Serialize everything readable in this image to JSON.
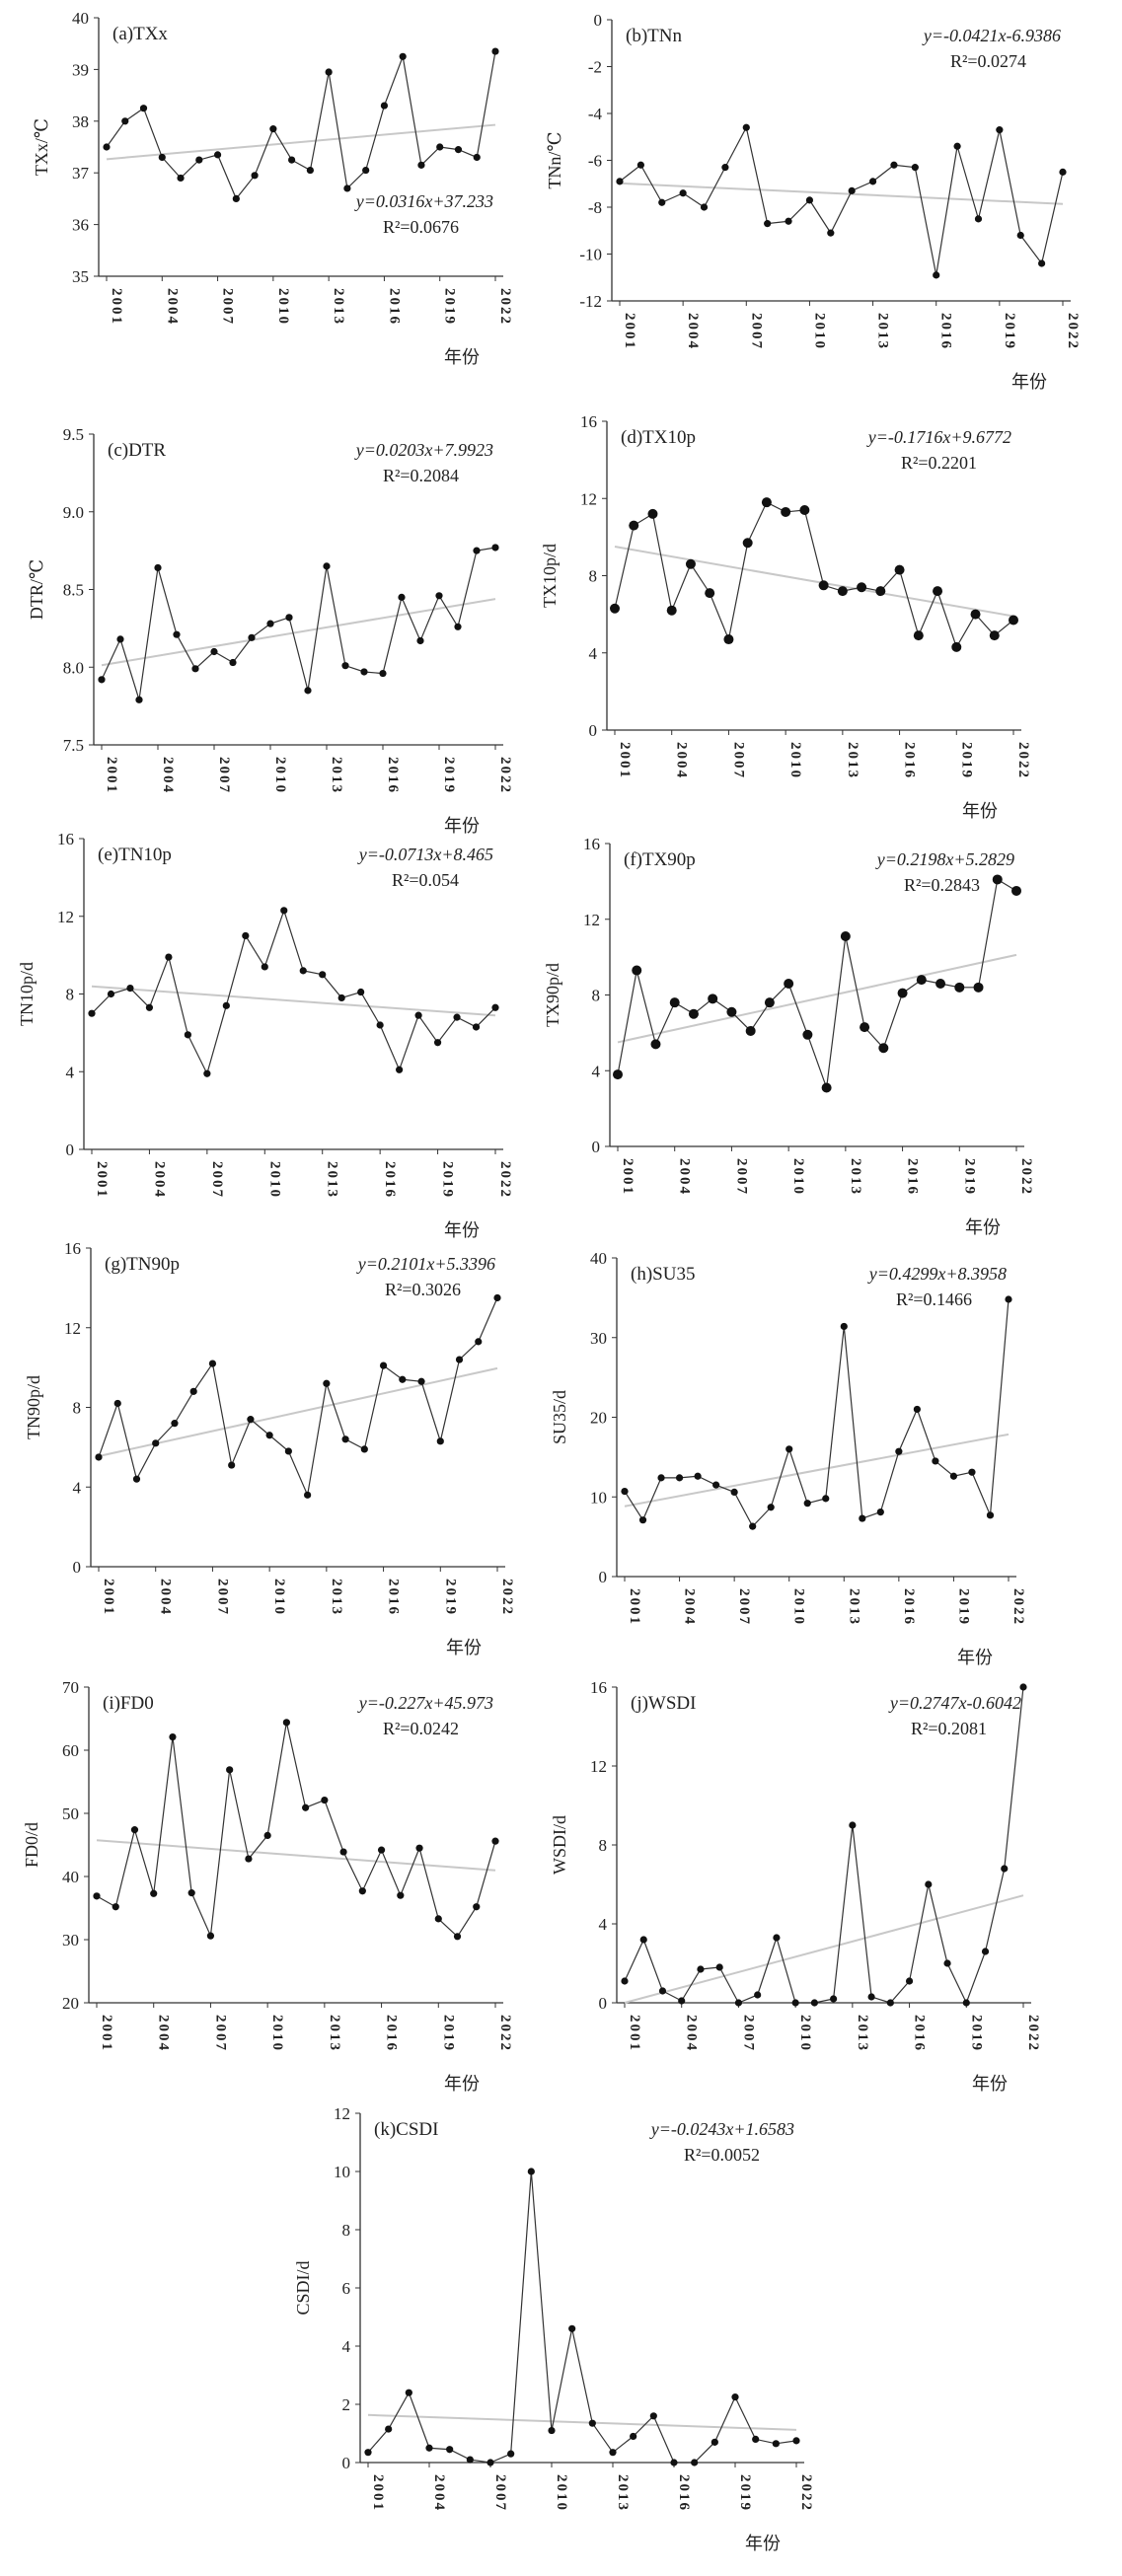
{
  "chart_data": [
    {
      "type": "line",
      "title": "(a)TXx",
      "ylabel": "TXx/℃",
      "xlabel": "年份",
      "x": [
        2001,
        2002,
        2003,
        2004,
        2005,
        2006,
        2007,
        2008,
        2009,
        2010,
        2011,
        2012,
        2013,
        2014,
        2015,
        2016,
        2017,
        2018,
        2019,
        2020,
        2021,
        2022
      ],
      "values": [
        37.5,
        38.0,
        38.25,
        37.3,
        36.9,
        37.25,
        37.35,
        36.5,
        36.95,
        37.85,
        37.25,
        37.05,
        38.95,
        36.7,
        37.05,
        38.3,
        39.25,
        37.15,
        37.5,
        37.45,
        37.3,
        39.35
      ],
      "ylim": [
        35,
        40
      ],
      "yticks": [
        "35",
        "36",
        "37",
        "38",
        "39",
        "40"
      ],
      "xticks": [
        "2001",
        "2004",
        "2007",
        "2010",
        "2013",
        "2016",
        "2019",
        "2022"
      ],
      "equation": "y=0.0316x+37.233",
      "r2": "R²=0.0676",
      "trend": {
        "slope": 0.0316,
        "intercept": 37.233
      },
      "equation_placement": "bottom-right"
    },
    {
      "type": "line",
      "title": "(b)TNn",
      "ylabel": "TNn/℃",
      "xlabel": "年份",
      "x": [
        2001,
        2002,
        2003,
        2004,
        2005,
        2006,
        2007,
        2008,
        2009,
        2010,
        2011,
        2012,
        2013,
        2014,
        2015,
        2016,
        2017,
        2018,
        2019,
        2020,
        2021,
        2022
      ],
      "values": [
        -6.9,
        -6.2,
        -7.8,
        -7.4,
        -8.0,
        -6.3,
        -4.6,
        -8.7,
        -8.6,
        -7.7,
        -9.1,
        -7.3,
        -6.9,
        -6.2,
        -6.3,
        -10.9,
        -5.4,
        -8.5,
        -4.7,
        -9.2,
        -10.4,
        -6.5
      ],
      "ylim": [
        -12,
        0
      ],
      "yticks": [
        "-12",
        "-10",
        "-8",
        "-6",
        "-4",
        "-2",
        "0"
      ],
      "xticks": [
        "2001",
        "2004",
        "2007",
        "2010",
        "2013",
        "2016",
        "2019",
        "2022"
      ],
      "equation": "y=-0.0421x-6.9386",
      "r2": "R²=0.0274",
      "trend": {
        "slope": -0.0421,
        "intercept": -6.9386
      },
      "equation_placement": "top-right"
    },
    {
      "type": "line",
      "title": "(c)DTR",
      "ylabel": "DTR/℃",
      "xlabel": "年份",
      "x": [
        2001,
        2002,
        2003,
        2004,
        2005,
        2006,
        2007,
        2008,
        2009,
        2010,
        2011,
        2012,
        2013,
        2014,
        2015,
        2016,
        2017,
        2018,
        2019,
        2020,
        2021,
        2022
      ],
      "values": [
        7.92,
        8.18,
        7.79,
        8.64,
        8.21,
        7.99,
        8.1,
        8.03,
        8.19,
        8.28,
        8.32,
        7.85,
        8.65,
        8.01,
        7.97,
        7.96,
        8.45,
        8.17,
        8.46,
        8.26,
        8.75,
        8.77
      ],
      "ylim": [
        7.5,
        9.5
      ],
      "yticks": [
        "7.5",
        "8.0",
        "8.5",
        "9.0",
        "9.5"
      ],
      "xticks": [
        "2001",
        "2004",
        "2007",
        "2010",
        "2013",
        "2016",
        "2019",
        "2022"
      ],
      "equation": "y=0.0203x+7.9923",
      "r2": "R²=0.2084",
      "trend": {
        "slope": 0.0203,
        "intercept": 7.9923
      },
      "equation_placement": "top-right"
    },
    {
      "type": "line",
      "title": "(d)TX10p",
      "ylabel": "TX10p/d",
      "xlabel": "年份",
      "x": [
        2001,
        2002,
        2003,
        2004,
        2005,
        2006,
        2007,
        2008,
        2009,
        2010,
        2011,
        2012,
        2013,
        2014,
        2015,
        2016,
        2017,
        2018,
        2019,
        2020,
        2021,
        2022
      ],
      "values": [
        6.3,
        10.6,
        11.2,
        6.2,
        8.6,
        7.1,
        4.7,
        9.7,
        11.8,
        11.3,
        11.4,
        7.5,
        7.2,
        7.4,
        7.2,
        8.3,
        4.9,
        7.2,
        4.3,
        6.0,
        4.9,
        5.7
      ],
      "ylim": [
        0,
        16
      ],
      "yticks": [
        "0",
        "4",
        "8",
        "12",
        "16"
      ],
      "xticks": [
        "2001",
        "2004",
        "2007",
        "2010",
        "2013",
        "2016",
        "2019",
        "2022"
      ],
      "equation": "y=-0.1716x+9.6772",
      "r2": "R²=0.2201",
      "trend": {
        "slope": -0.1716,
        "intercept": 9.6772
      },
      "equation_placement": "top-right"
    },
    {
      "type": "line",
      "title": "(e)TN10p",
      "ylabel": "TN10p/d",
      "xlabel": "年份",
      "x": [
        2001,
        2002,
        2003,
        2004,
        2005,
        2006,
        2007,
        2008,
        2009,
        2010,
        2011,
        2012,
        2013,
        2014,
        2015,
        2016,
        2017,
        2018,
        2019,
        2020,
        2021,
        2022
      ],
      "values": [
        7.0,
        8.0,
        8.3,
        7.3,
        9.9,
        5.9,
        3.9,
        7.4,
        11.0,
        9.4,
        12.3,
        9.2,
        9.0,
        7.8,
        8.1,
        6.4,
        4.1,
        6.9,
        5.5,
        6.8,
        6.3,
        7.3
      ],
      "ylim": [
        0,
        16
      ],
      "yticks": [
        "0",
        "4",
        "8",
        "12",
        "16"
      ],
      "xticks": [
        "2001",
        "2004",
        "2007",
        "2010",
        "2013",
        "2016",
        "2019",
        "2022"
      ],
      "equation": "y=-0.0713x+8.465",
      "r2": "R²=0.054",
      "trend": {
        "slope": -0.0713,
        "intercept": 8.465
      },
      "equation_placement": "top-right"
    },
    {
      "type": "line",
      "title": "(f)TX90p",
      "ylabel": "TX90p/d",
      "xlabel": "年份",
      "x": [
        2001,
        2002,
        2003,
        2004,
        2005,
        2006,
        2007,
        2008,
        2009,
        2010,
        2011,
        2012,
        2013,
        2014,
        2015,
        2016,
        2017,
        2018,
        2019,
        2020,
        2021,
        2022
      ],
      "values": [
        3.8,
        9.3,
        5.4,
        7.6,
        7.0,
        7.8,
        7.1,
        6.1,
        7.6,
        8.6,
        5.9,
        3.1,
        11.1,
        6.3,
        5.2,
        8.1,
        8.8,
        8.6,
        8.4,
        8.4,
        14.1,
        13.5
      ],
      "ylim": [
        0,
        16
      ],
      "yticks": [
        "0",
        "4",
        "8",
        "12",
        "16"
      ],
      "xticks": [
        "2001",
        "2004",
        "2007",
        "2010",
        "2013",
        "2016",
        "2019",
        "2022"
      ],
      "equation": "y=0.2198x+5.2829",
      "r2": "R²=0.2843",
      "trend": {
        "slope": 0.2198,
        "intercept": 5.2829
      },
      "equation_placement": "top-right"
    },
    {
      "type": "line",
      "title": "(g)TN90p",
      "ylabel": "TN90p/d",
      "xlabel": "年份",
      "x": [
        2001,
        2002,
        2003,
        2004,
        2005,
        2006,
        2007,
        2008,
        2009,
        2010,
        2011,
        2012,
        2013,
        2014,
        2015,
        2016,
        2017,
        2018,
        2019,
        2020,
        2021,
        2022
      ],
      "values": [
        5.5,
        8.2,
        4.4,
        6.2,
        7.2,
        8.8,
        10.2,
        5.1,
        7.4,
        6.6,
        5.8,
        3.6,
        9.2,
        6.4,
        5.9,
        10.1,
        9.4,
        9.3,
        6.3,
        10.4,
        11.3,
        13.5
      ],
      "ylim": [
        0,
        16
      ],
      "yticks": [
        "0",
        "4",
        "8",
        "12",
        "16"
      ],
      "xticks": [
        "2001",
        "2004",
        "2007",
        "2010",
        "2013",
        "2016",
        "2019",
        "2022"
      ],
      "equation": "y=0.2101x+5.3396",
      "r2": "R²=0.3026",
      "trend": {
        "slope": 0.2101,
        "intercept": 5.3396
      },
      "equation_placement": "top-right"
    },
    {
      "type": "line",
      "title": "(h)SU35",
      "ylabel": "SU35/d",
      "xlabel": "年份",
      "x": [
        2001,
        2002,
        2003,
        2004,
        2005,
        2006,
        2007,
        2008,
        2009,
        2010,
        2011,
        2012,
        2013,
        2014,
        2015,
        2016,
        2017,
        2018,
        2019,
        2020,
        2021,
        2022
      ],
      "values": [
        10.7,
        7.1,
        12.4,
        12.4,
        12.6,
        11.5,
        10.6,
        6.3,
        8.7,
        16.0,
        9.2,
        9.8,
        31.4,
        7.3,
        8.1,
        15.7,
        21.0,
        14.5,
        12.6,
        13.1,
        7.7,
        34.8
      ],
      "ylim": [
        0,
        40
      ],
      "yticks": [
        "0",
        "10",
        "20",
        "30",
        "40"
      ],
      "xticks": [
        "2001",
        "2004",
        "2007",
        "2010",
        "2013",
        "2016",
        "2019",
        "2022"
      ],
      "equation": "y=0.4299x+8.3958",
      "r2": "R²=0.1466",
      "trend": {
        "slope": 0.4299,
        "intercept": 8.3958
      },
      "equation_placement": "top-right"
    },
    {
      "type": "line",
      "title": "(i)FD0",
      "ylabel": "FD0/d",
      "xlabel": "年份",
      "x": [
        2001,
        2002,
        2003,
        2004,
        2005,
        2006,
        2007,
        2008,
        2009,
        2010,
        2011,
        2012,
        2013,
        2014,
        2015,
        2016,
        2017,
        2018,
        2019,
        2020,
        2021,
        2022
      ],
      "values": [
        36.9,
        35.2,
        47.4,
        37.3,
        62.1,
        37.4,
        30.6,
        56.9,
        42.8,
        46.5,
        64.4,
        50.9,
        52.1,
        43.9,
        37.7,
        44.2,
        37.0,
        44.5,
        33.3,
        30.5,
        35.2,
        45.6
      ],
      "ylim": [
        20,
        70
      ],
      "yticks": [
        "20",
        "30",
        "40",
        "50",
        "60",
        "70"
      ],
      "xticks": [
        "2001",
        "2004",
        "2007",
        "2010",
        "2013",
        "2016",
        "2019",
        "2022"
      ],
      "equation": "y=-0.227x+45.973",
      "r2": "R²=0.0242",
      "trend": {
        "slope": -0.227,
        "intercept": 45.973
      },
      "equation_placement": "top-right"
    },
    {
      "type": "line",
      "title": "(j)WSDI",
      "ylabel": "WSDI/d",
      "xlabel": "年份",
      "x": [
        2001,
        2002,
        2003,
        2004,
        2005,
        2006,
        2007,
        2008,
        2009,
        2010,
        2011,
        2012,
        2013,
        2014,
        2015,
        2016,
        2017,
        2018,
        2019,
        2020,
        2021,
        2022
      ],
      "values": [
        1.1,
        3.2,
        0.6,
        0.1,
        1.7,
        1.8,
        0.0,
        0.4,
        3.3,
        0.0,
        0.0,
        0.2,
        9.0,
        0.3,
        0.0,
        1.1,
        6.0,
        2.0,
        0.0,
        2.6,
        6.8,
        16.0
      ],
      "ylim": [
        0,
        16
      ],
      "yticks": [
        "0",
        "4",
        "8",
        "12",
        "16"
      ],
      "xticks": [
        "2001",
        "2004",
        "2007",
        "2010",
        "2013",
        "2016",
        "2019",
        "2022"
      ],
      "equation": "y=0.2747x-0.6042",
      "r2": "R²=0.2081",
      "trend": {
        "slope": 0.2747,
        "intercept": -0.6042
      },
      "equation_placement": "top-right"
    },
    {
      "type": "line",
      "title": "(k)CSDI",
      "ylabel": "CSDI/d",
      "xlabel": "年份",
      "x": [
        2001,
        2002,
        2003,
        2004,
        2005,
        2006,
        2007,
        2008,
        2009,
        2010,
        2011,
        2012,
        2013,
        2014,
        2015,
        2016,
        2017,
        2018,
        2019,
        2020,
        2021,
        2022
      ],
      "values": [
        0.35,
        1.15,
        2.4,
        0.5,
        0.45,
        0.1,
        0.0,
        0.3,
        10.0,
        1.1,
        4.6,
        1.35,
        0.35,
        0.9,
        1.6,
        0.0,
        0.0,
        0.7,
        2.25,
        0.8,
        0.65,
        0.75
      ],
      "ylim": [
        0,
        12
      ],
      "yticks": [
        "0",
        "2",
        "4",
        "6",
        "8",
        "10",
        "12"
      ],
      "xticks": [
        "2001",
        "2004",
        "2007",
        "2010",
        "2013",
        "2016",
        "2019",
        "2022"
      ],
      "equation": "y=-0.0243x+1.6583",
      "r2": "R²=0.0052",
      "trend": {
        "slope": -0.0243,
        "intercept": 1.6583
      },
      "equation_placement": "top-right"
    }
  ]
}
